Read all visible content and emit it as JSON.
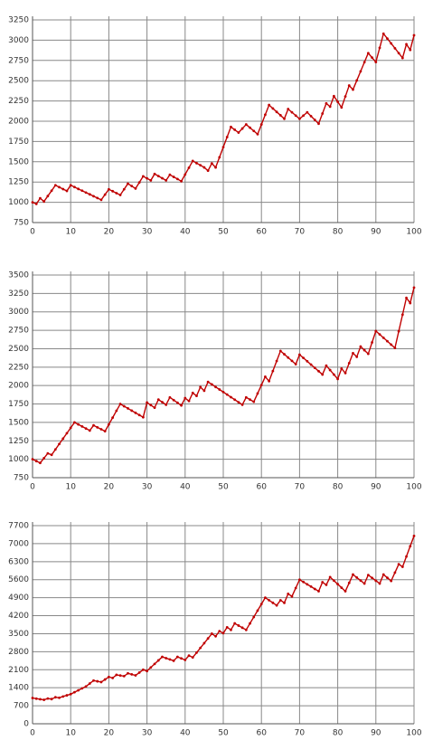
{
  "chart_data": [
    {
      "type": "line",
      "color": "#c00000",
      "grid": true,
      "xlim": [
        0,
        100
      ],
      "xticks": [
        0,
        10,
        20,
        30,
        40,
        50,
        60,
        70,
        80,
        90,
        100
      ],
      "ylim": [
        750,
        3250
      ],
      "yticks": [
        750,
        1000,
        1250,
        1500,
        1750,
        2000,
        2250,
        2500,
        2750,
        3000,
        3250
      ],
      "x": [
        0,
        1,
        2,
        3,
        4,
        5,
        6,
        7,
        8,
        9,
        10,
        11,
        12,
        13,
        14,
        15,
        16,
        17,
        18,
        19,
        20,
        21,
        22,
        23,
        24,
        25,
        26,
        27,
        28,
        29,
        30,
        31,
        32,
        33,
        34,
        35,
        36,
        37,
        38,
        39,
        40,
        41,
        42,
        43,
        44,
        45,
        46,
        47,
        48,
        49,
        50,
        51,
        52,
        53,
        54,
        55,
        56,
        57,
        58,
        59,
        60,
        61,
        62,
        63,
        64,
        65,
        66,
        67,
        68,
        69,
        70,
        71,
        72,
        73,
        74,
        75,
        76,
        77,
        78,
        79,
        80,
        81,
        82,
        83,
        84,
        85,
        86,
        87,
        88,
        89,
        90,
        91,
        92,
        93,
        94,
        95,
        96,
        97,
        98,
        99,
        100
      ],
      "values": [
        1000,
        980,
        1050,
        1010,
        1077,
        1143,
        1210,
        1187,
        1163,
        1140,
        1210,
        1188,
        1165,
        1143,
        1120,
        1098,
        1075,
        1053,
        1030,
        1095,
        1160,
        1137,
        1113,
        1090,
        1160,
        1230,
        1200,
        1170,
        1245,
        1320,
        1295,
        1270,
        1350,
        1323,
        1297,
        1270,
        1340,
        1313,
        1287,
        1260,
        1343,
        1427,
        1510,
        1483,
        1457,
        1430,
        1390,
        1480,
        1430,
        1555,
        1680,
        1805,
        1930,
        1895,
        1860,
        1910,
        1960,
        1920,
        1880,
        1840,
        1960,
        2080,
        2200,
        2158,
        2115,
        2073,
        2030,
        2150,
        2110,
        2070,
        2030,
        2070,
        2110,
        2063,
        2017,
        1970,
        2095,
        2220,
        2180,
        2310,
        2240,
        2170,
        2305,
        2440,
        2390,
        2503,
        2615,
        2728,
        2840,
        2785,
        2730,
        2905,
        3080,
        3020,
        2960,
        2900,
        2840,
        2780,
        2950,
        2880,
        3060
      ]
    },
    {
      "type": "line",
      "color": "#c00000",
      "grid": true,
      "xlim": [
        0,
        100
      ],
      "xticks": [
        0,
        10,
        20,
        30,
        40,
        50,
        60,
        70,
        80,
        90,
        100
      ],
      "ylim": [
        750,
        3500
      ],
      "yticks": [
        750,
        1000,
        1250,
        1500,
        1750,
        2000,
        2250,
        2500,
        2750,
        3000,
        3250,
        3500
      ],
      "x": [
        0,
        1,
        2,
        3,
        4,
        5,
        6,
        7,
        8,
        9,
        10,
        11,
        12,
        13,
        14,
        15,
        16,
        17,
        18,
        19,
        20,
        21,
        22,
        23,
        24,
        25,
        26,
        27,
        28,
        29,
        30,
        31,
        32,
        33,
        34,
        35,
        36,
        37,
        38,
        39,
        40,
        41,
        42,
        43,
        44,
        45,
        46,
        47,
        48,
        49,
        50,
        51,
        52,
        53,
        54,
        55,
        56,
        57,
        58,
        59,
        60,
        61,
        62,
        63,
        64,
        65,
        66,
        67,
        68,
        69,
        70,
        71,
        72,
        73,
        74,
        75,
        76,
        77,
        78,
        79,
        80,
        81,
        82,
        83,
        84,
        85,
        86,
        87,
        88,
        89,
        90,
        91,
        92,
        93,
        94,
        95,
        96,
        97,
        98,
        99,
        100
      ],
      "values": [
        1000,
        975,
        950,
        1015,
        1080,
        1060,
        1133,
        1207,
        1280,
        1353,
        1427,
        1500,
        1473,
        1445,
        1418,
        1390,
        1460,
        1433,
        1407,
        1380,
        1473,
        1565,
        1658,
        1750,
        1720,
        1690,
        1660,
        1630,
        1600,
        1570,
        1770,
        1735,
        1700,
        1810,
        1775,
        1740,
        1840,
        1803,
        1767,
        1730,
        1830,
        1790,
        1900,
        1860,
        1980,
        1930,
        2050,
        2016,
        1981,
        1947,
        1912,
        1878,
        1843,
        1809,
        1774,
        1740,
        1840,
        1810,
        1780,
        1893,
        2007,
        2120,
        2060,
        2197,
        2333,
        2470,
        2425,
        2380,
        2335,
        2290,
        2420,
        2375,
        2330,
        2285,
        2240,
        2195,
        2150,
        2270,
        2210,
        2150,
        2090,
        2230,
        2170,
        2305,
        2440,
        2390,
        2530,
        2480,
        2430,
        2585,
        2740,
        2694,
        2648,
        2602,
        2556,
        2510,
        2737,
        2963,
        3190,
        3120,
        3330
      ]
    },
    {
      "type": "line",
      "color": "#c00000",
      "grid": true,
      "xlim": [
        0,
        100
      ],
      "xticks": [
        0,
        10,
        20,
        30,
        40,
        50,
        60,
        70,
        80,
        90,
        100
      ],
      "ylim": [
        0,
        7700
      ],
      "yticks": [
        0,
        700,
        1400,
        2100,
        2800,
        3500,
        4200,
        4900,
        5600,
        6300,
        7000,
        7700
      ],
      "x": [
        0,
        1,
        2,
        3,
        4,
        5,
        6,
        7,
        8,
        9,
        10,
        11,
        12,
        13,
        14,
        15,
        16,
        17,
        18,
        19,
        20,
        21,
        22,
        23,
        24,
        25,
        26,
        27,
        28,
        29,
        30,
        31,
        32,
        33,
        34,
        35,
        36,
        37,
        38,
        39,
        40,
        41,
        42,
        43,
        44,
        45,
        46,
        47,
        48,
        49,
        50,
        51,
        52,
        53,
        54,
        55,
        56,
        57,
        58,
        59,
        60,
        61,
        62,
        63,
        64,
        65,
        66,
        67,
        68,
        69,
        70,
        71,
        72,
        73,
        74,
        75,
        76,
        77,
        78,
        79,
        80,
        81,
        82,
        83,
        84,
        85,
        86,
        87,
        88,
        89,
        90,
        91,
        92,
        93,
        94,
        95,
        96,
        97,
        98,
        99,
        100
      ],
      "values": [
        1000,
        977,
        953,
        930,
        980,
        960,
        1030,
        1010,
        1060,
        1105,
        1150,
        1225,
        1300,
        1375,
        1450,
        1565,
        1680,
        1650,
        1620,
        1720,
        1820,
        1780,
        1900,
        1875,
        1850,
        1960,
        1920,
        1880,
        1990,
        2100,
        2050,
        2188,
        2325,
        2463,
        2600,
        2550,
        2500,
        2450,
        2600,
        2540,
        2480,
        2650,
        2580,
        2764,
        2948,
        3132,
        3316,
        3500,
        3400,
        3600,
        3520,
        3750,
        3650,
        3900,
        3817,
        3733,
        3650,
        3900,
        4150,
        4400,
        4650,
        4900,
        4800,
        4700,
        4600,
        4800,
        4700,
        5050,
        4950,
        5275,
        5600,
        5510,
        5420,
        5330,
        5240,
        5150,
        5500,
        5400,
        5700,
        5563,
        5425,
        5288,
        5150,
        5475,
        5800,
        5683,
        5567,
        5450,
        5780,
        5670,
        5560,
        5450,
        5800,
        5675,
        5550,
        5875,
        6200,
        6100,
        6500,
        6900,
        7300
      ]
    }
  ]
}
